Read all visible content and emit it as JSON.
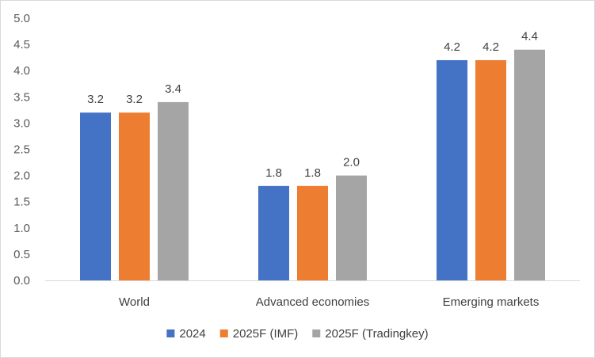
{
  "chart_data": {
    "type": "bar",
    "title": "",
    "xlabel": "",
    "ylabel": "",
    "ylim": [
      0,
      5
    ],
    "yticks": [
      "0.0",
      "0.5",
      "1.0",
      "1.5",
      "2.0",
      "2.5",
      "3.0",
      "3.5",
      "4.0",
      "4.5",
      "5.0"
    ],
    "grid": false,
    "legend_position": "bottom",
    "categories": [
      "World",
      "Advanced economies",
      "Emerging markets"
    ],
    "series": [
      {
        "name": "2024",
        "color": "#4472C4",
        "values": [
          3.2,
          1.8,
          4.2
        ],
        "labels": [
          "3.2",
          "1.8",
          "4.2"
        ]
      },
      {
        "name": "2025F (IMF)",
        "color": "#ED7D31",
        "values": [
          3.2,
          1.8,
          4.2
        ],
        "labels": [
          "3.2",
          "1.8",
          "4.2"
        ]
      },
      {
        "name": "2025F (Tradingkey)",
        "color": "#A5A5A5",
        "values": [
          3.4,
          2.0,
          4.4
        ],
        "labels": [
          "3.4",
          "2.0",
          "4.4"
        ]
      }
    ]
  }
}
